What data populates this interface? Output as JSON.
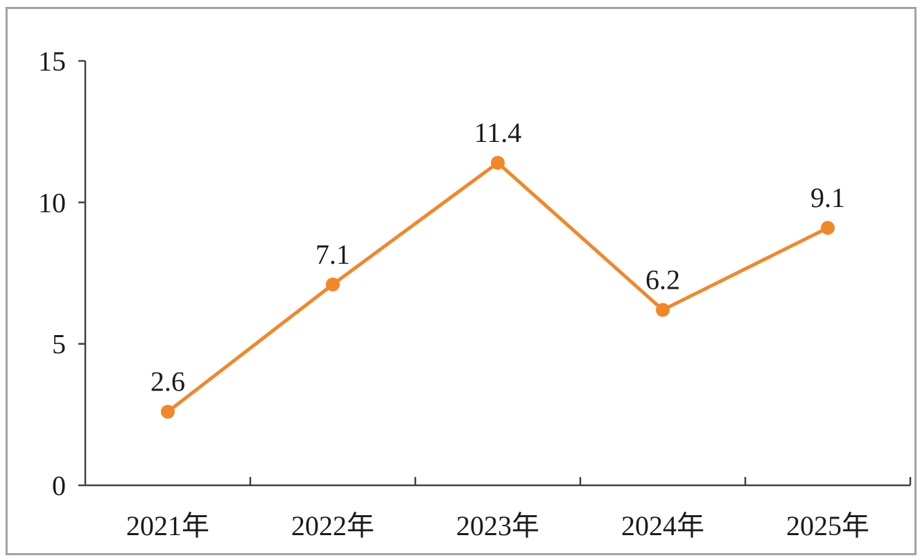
{
  "chart_data": {
    "type": "line",
    "title": "",
    "xlabel": "",
    "ylabel": "",
    "categories": [
      "2021年",
      "2022年",
      "2023年",
      "2024年",
      "2025年"
    ],
    "series": [
      {
        "values": [
          2.6,
          7.1,
          11.4,
          6.2,
          9.1
        ],
        "color": "#f0882a"
      }
    ],
    "data_labels": [
      "2.6",
      "7.1",
      "11.4",
      "6.2",
      "9.1"
    ],
    "ylim": [
      0,
      15
    ],
    "y_ticks": [
      0,
      5,
      10,
      15
    ],
    "y_tick_labels": [
      "0",
      "5",
      "10",
      "15"
    ],
    "grid": false,
    "legend": "none",
    "colors": {
      "axis": "#404040",
      "frame": "#a3a3a3",
      "line": "#f0882a"
    }
  }
}
